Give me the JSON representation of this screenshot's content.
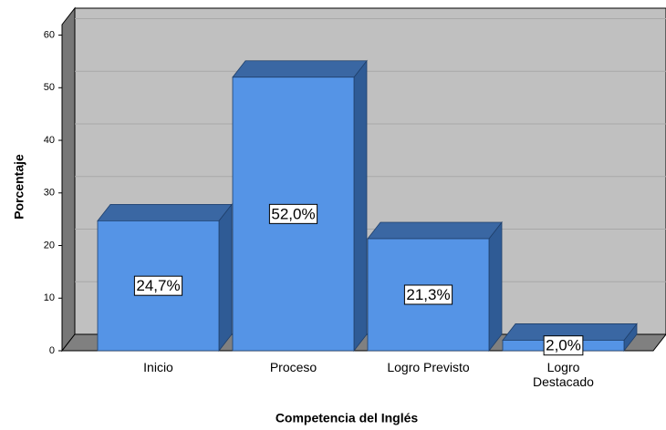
{
  "chart_data": {
    "type": "bar3d",
    "x_label": "Competencia del Inglés",
    "y_label": "Porcentaje",
    "categories": [
      "Inicio",
      "Proceso",
      "Logro Previsto",
      "Logro Destacado"
    ],
    "values": [
      24.7,
      52.0,
      21.3,
      2.0
    ],
    "value_labels": [
      "24,7%",
      "52,0%",
      "21,3%",
      "2,0%"
    ],
    "color": "#5594e6",
    "ylim": [
      0,
      62
    ],
    "yticks": [
      0,
      10,
      20,
      30,
      40,
      50,
      60
    ],
    "grid": true
  }
}
